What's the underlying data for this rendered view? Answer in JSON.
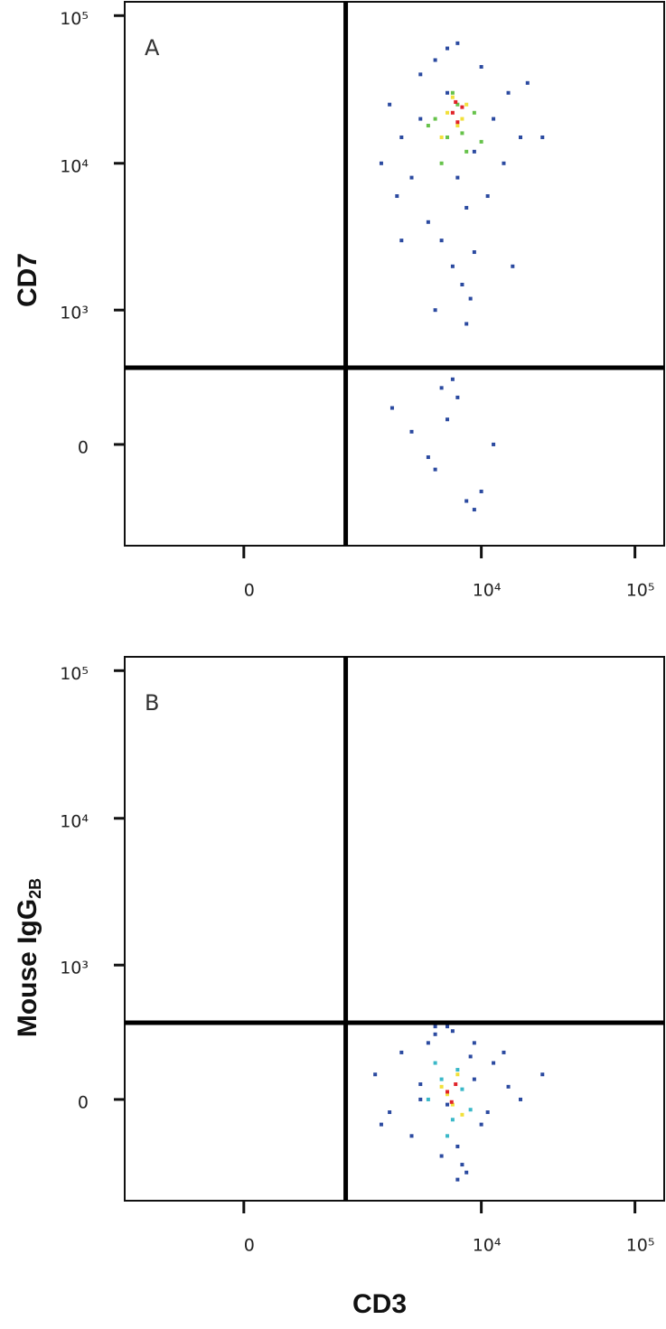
{
  "chart_data": [
    {
      "type": "scatter",
      "annotation": "A",
      "ylabel": "CD7",
      "xscale": "biexponential",
      "yscale": "biexponential",
      "xlim": [
        -1650,
        155000
      ],
      "ylim": [
        -580,
        124000
      ],
      "xticks": [
        0,
        {
          "value": 10000,
          "label": "10⁴"
        },
        {
          "value": 100000,
          "label": "10⁵"
        }
      ],
      "yticks": [
        0,
        {
          "value": 1000,
          "label": "10³"
        },
        {
          "value": 10000,
          "label": "10⁴"
        },
        {
          "value": 100000,
          "label": "10⁵"
        }
      ],
      "quadrant_x": 1250,
      "quadrant_y": 376,
      "series": [
        {
          "color": "#2b4aa0",
          "x": [
            2500,
            3000,
            4000,
            5000,
            6000,
            7000,
            8000,
            9000,
            10000,
            12000,
            15000,
            18000,
            3500,
            4500,
            5500,
            6500,
            7500,
            8500,
            11000,
            14000,
            2200,
            2800,
            20000,
            25000,
            6000,
            7000,
            5000,
            8000,
            9000,
            4000,
            3000,
            5000,
            6000,
            7000,
            10000,
            12000,
            3500,
            4500,
            5500,
            6500,
            9000,
            2600,
            16000,
            8000
          ],
          "y": [
            25000,
            15000,
            40000,
            50000,
            30000,
            8000,
            5000,
            12000,
            45000,
            20000,
            30000,
            15000,
            8000,
            4000,
            3000,
            2000,
            1500,
            1200,
            6000,
            10000,
            10000,
            6000,
            35000,
            15000,
            60000,
            65000,
            1000,
            800,
            2500,
            20000,
            3000,
            -100,
            100,
            200,
            -200,
            0,
            50,
            -50,
            250,
            300,
            -300,
            150,
            2000,
            -250
          ]
        },
        {
          "color": "#66c24a",
          "x": [
            5000,
            6000,
            7000,
            8000,
            4500,
            9000,
            6500,
            5500,
            7500,
            10000
          ],
          "y": [
            20000,
            15000,
            25000,
            12000,
            18000,
            22000,
            30000,
            10000,
            16000,
            14000
          ]
        },
        {
          "color": "#f2e03a",
          "x": [
            6000,
            7000,
            8000,
            6500,
            7500,
            5500
          ],
          "y": [
            22000,
            18000,
            25000,
            28000,
            20000,
            15000
          ]
        },
        {
          "color": "#e0242a",
          "x": [
            6500,
            7000,
            7500,
            6800
          ],
          "y": [
            22000,
            19000,
            24000,
            26000
          ]
        }
      ]
    },
    {
      "type": "scatter",
      "annotation": "B",
      "ylabel": "Mouse IgG",
      "ylabel_sub": "2B",
      "xlabel": "CD3",
      "xscale": "biexponential",
      "yscale": "biexponential",
      "xlim": [
        -1650,
        155000
      ],
      "ylim": [
        -580,
        124000
      ],
      "xticks": [
        0,
        {
          "value": 10000,
          "label": "10⁴"
        },
        {
          "value": 100000,
          "label": "10⁵"
        }
      ],
      "yticks": [
        0,
        {
          "value": 1000,
          "label": "10³"
        },
        {
          "value": 10000,
          "label": "10⁴"
        },
        {
          "value": 100000,
          "label": "10⁵"
        }
      ],
      "quadrant_x": 1250,
      "quadrant_y": 376,
      "series": [
        {
          "color": "#2b4aa0",
          "x": [
            2000,
            2500,
            3000,
            4000,
            5000,
            6000,
            7000,
            8000,
            9000,
            10000,
            12000,
            15000,
            18000,
            25000,
            3500,
            4500,
            5500,
            6500,
            7500,
            8500,
            11000,
            14000,
            2200,
            5000,
            7000,
            9000,
            6000,
            4000
          ],
          "y": [
            100,
            -50,
            200,
            0,
            300,
            350,
            -200,
            -350,
            250,
            -100,
            150,
            50,
            0,
            100,
            -150,
            250,
            -250,
            320,
            -300,
            180,
            -50,
            200,
            -100,
            350,
            -400,
            80,
            -20,
            60
          ]
        },
        {
          "color": "#3ab8c8",
          "x": [
            4500,
            5500,
            6500,
            7500,
            8500,
            5000,
            6000,
            7000
          ],
          "y": [
            0,
            80,
            -80,
            40,
            -40,
            150,
            -150,
            120
          ]
        },
        {
          "color": "#f2e03a",
          "x": [
            5500,
            6500,
            7000,
            6000,
            7500
          ],
          "y": [
            50,
            -20,
            100,
            20,
            -60
          ]
        },
        {
          "color": "#e0242a",
          "x": [
            6000,
            6800,
            6400
          ],
          "y": [
            30,
            60,
            -10
          ]
        }
      ]
    }
  ]
}
